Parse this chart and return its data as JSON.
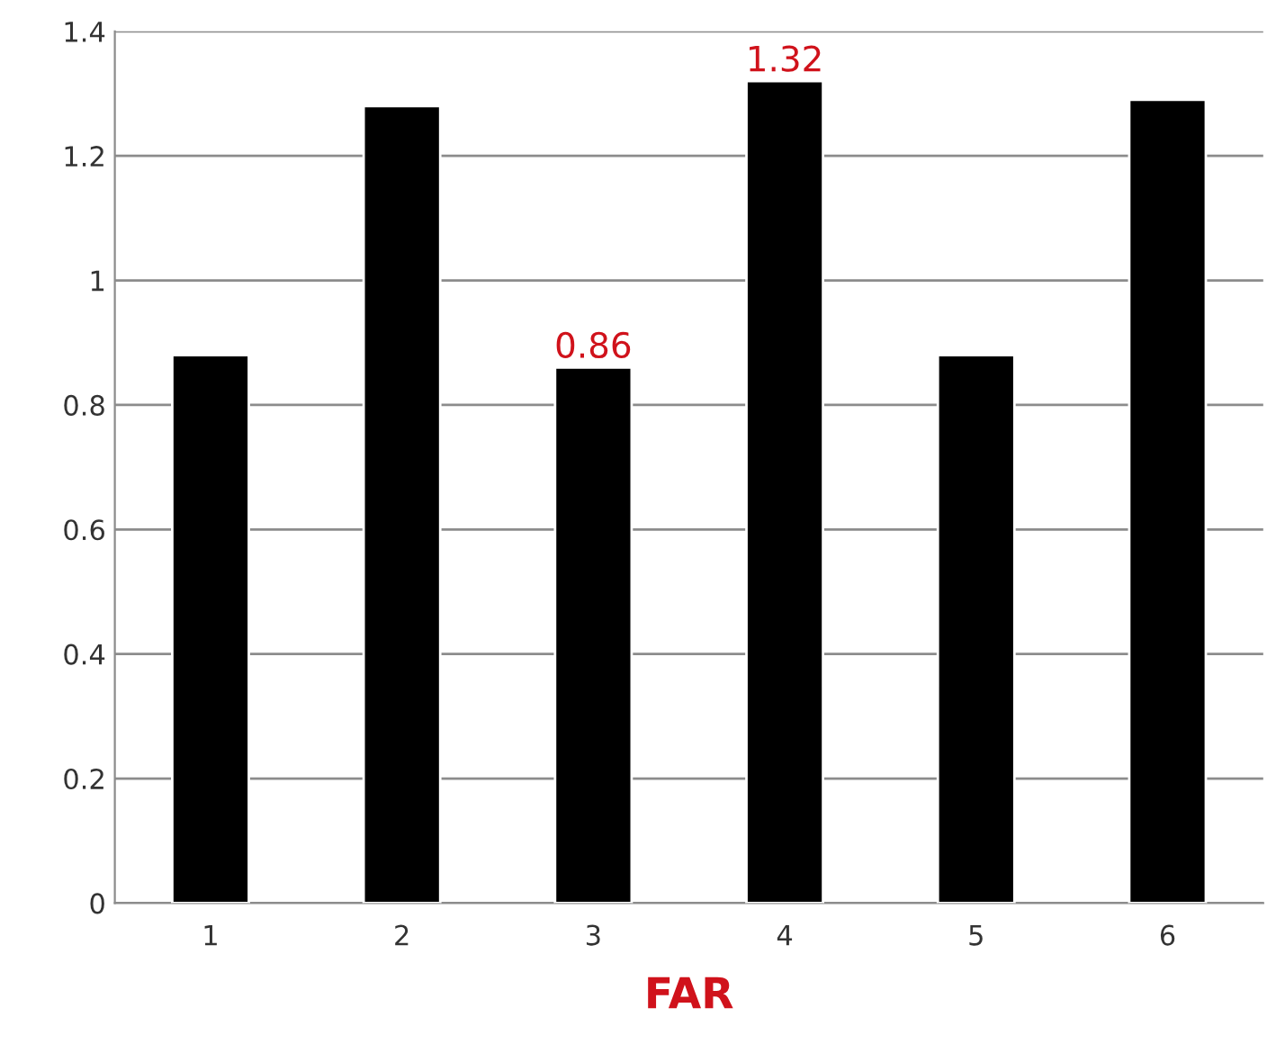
{
  "chart_data": {
    "type": "bar",
    "xlabel": "FAR",
    "categories": [
      "1",
      "2",
      "3",
      "4",
      "5",
      "6"
    ],
    "values": [
      0.88,
      1.28,
      0.86,
      1.32,
      0.88,
      1.29
    ],
    "value_labels": [
      null,
      null,
      "0.86",
      "1.32",
      null,
      null
    ],
    "color": "#000000",
    "ylim": [
      0,
      1.4
    ],
    "yticks": [
      0,
      0.2,
      0.4,
      0.6,
      0.8,
      1,
      1.2,
      1.4
    ],
    "grid": "y",
    "legend": false
  }
}
